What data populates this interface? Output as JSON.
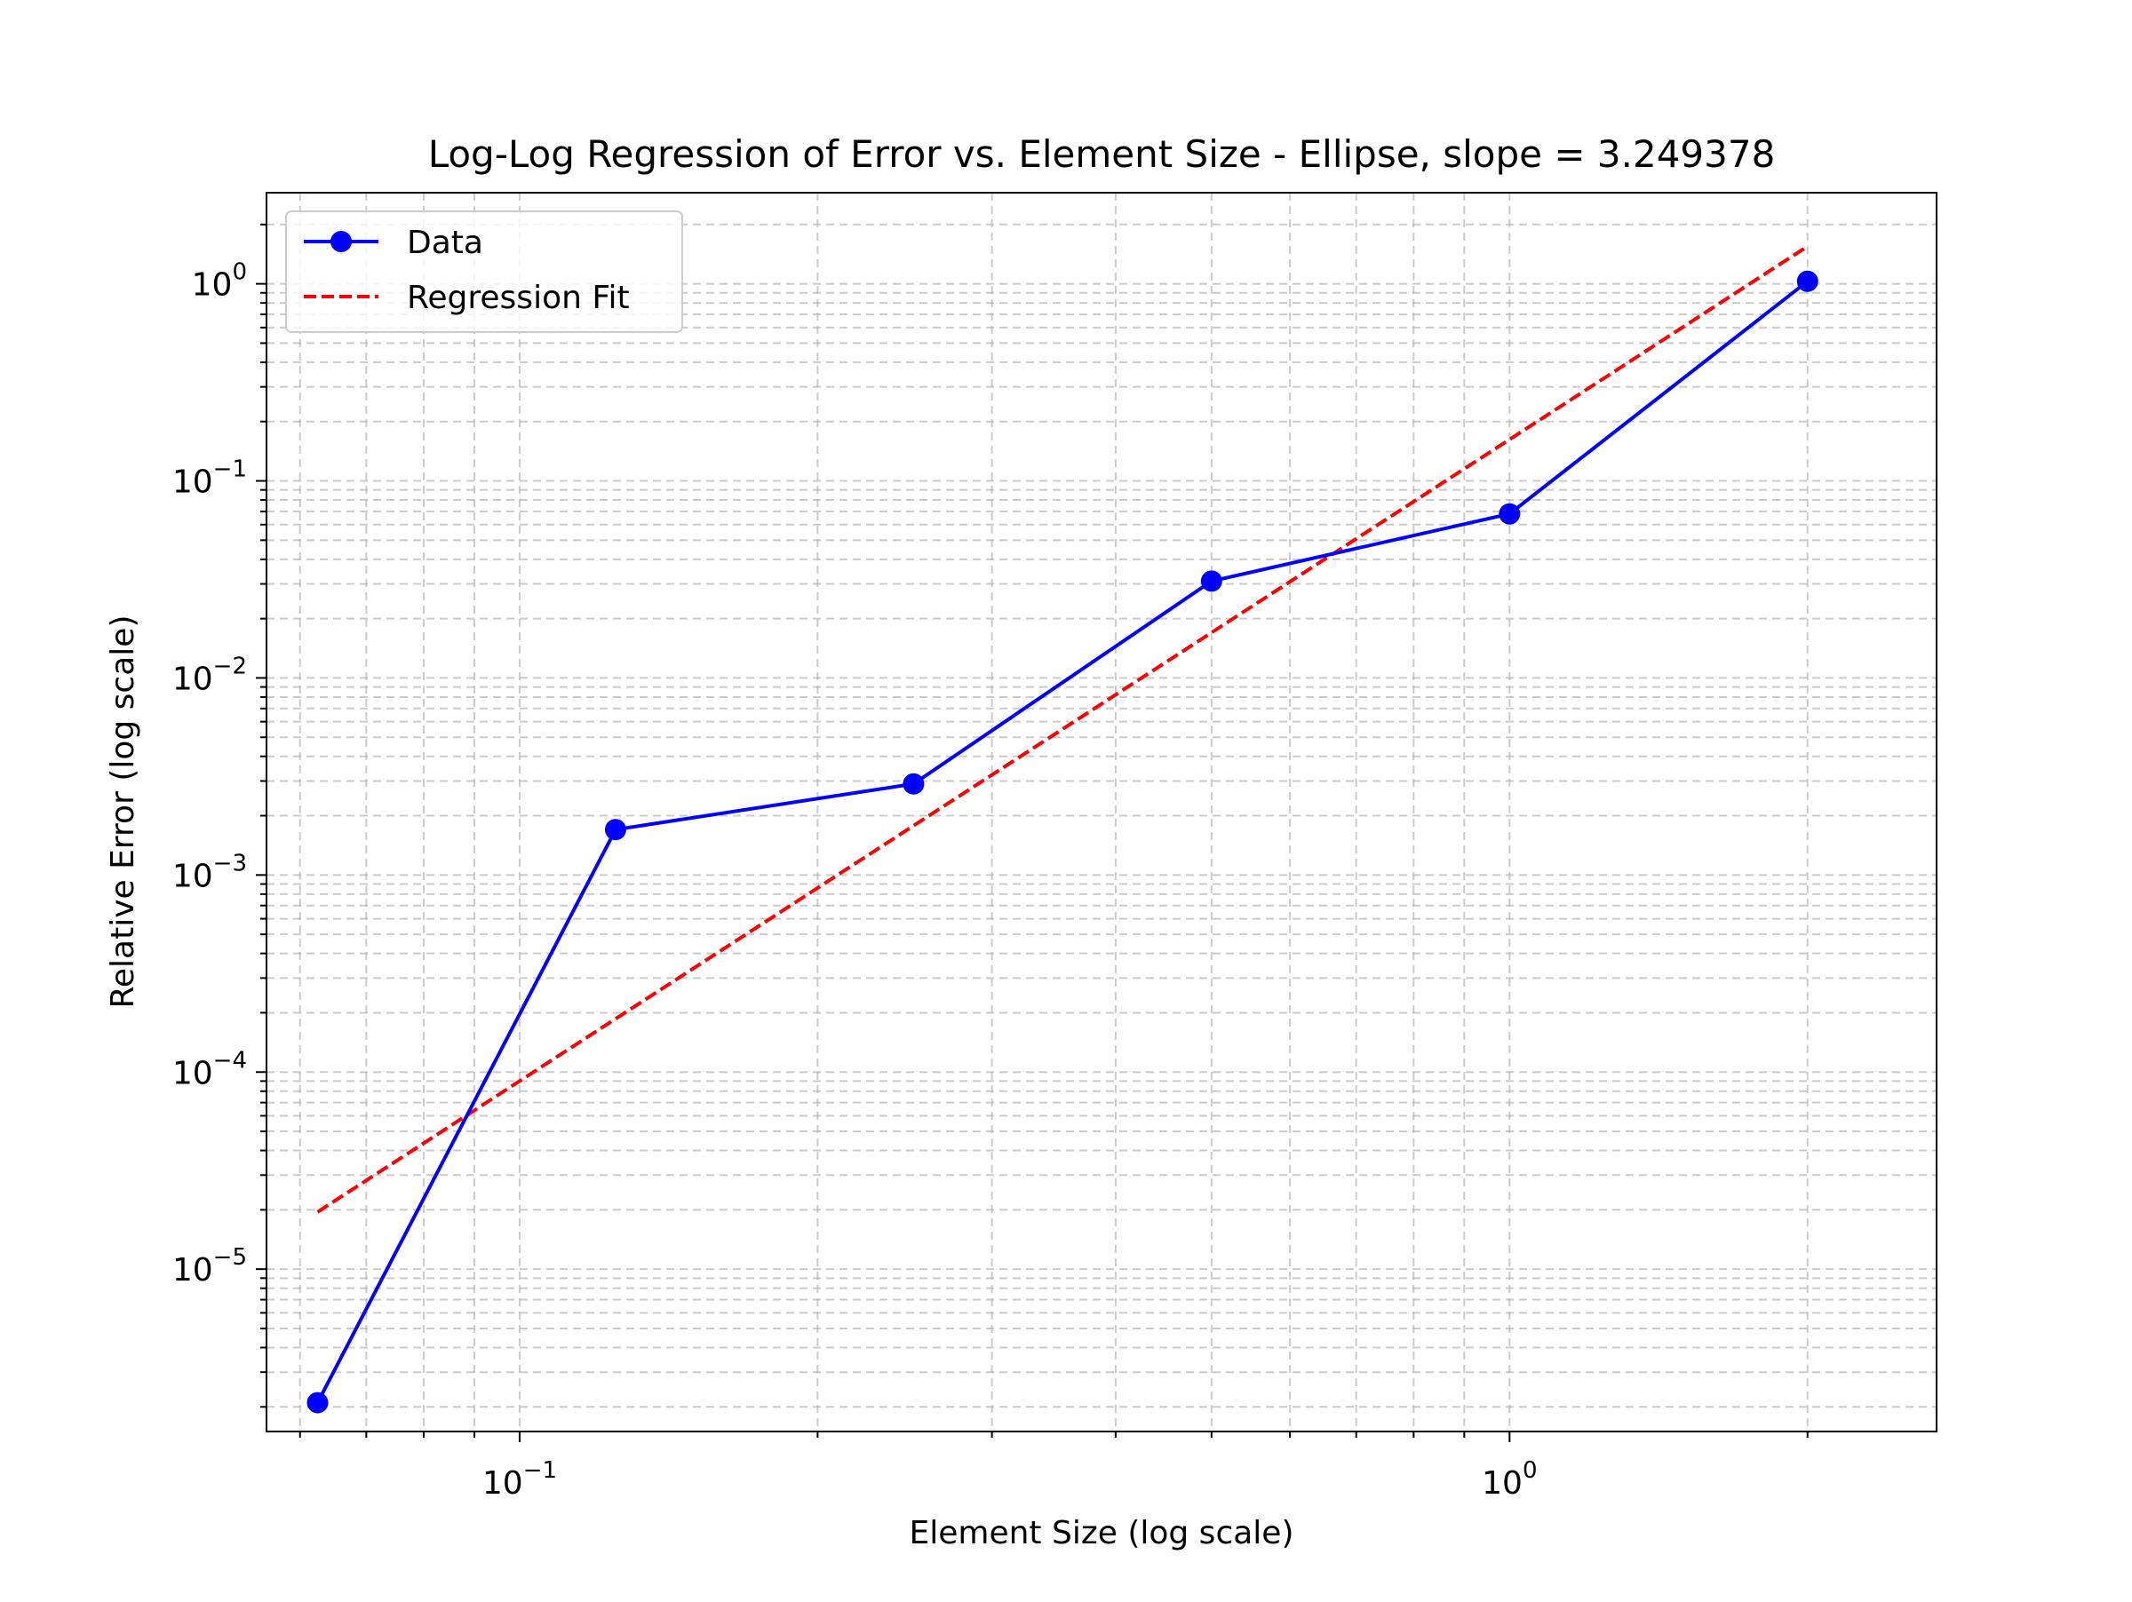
{
  "chart_data": {
    "type": "line",
    "title": "Log-Log Regression of Error vs. Element Size - Ellipse, slope = 3.249378",
    "xlabel": "Element Size (log scale)",
    "ylabel": "Relative Error (log scale)",
    "xscale": "log",
    "yscale": "log",
    "xlim": [
      0.0555,
      2.7
    ],
    "ylim": [
      1.5e-06,
      2.9
    ],
    "grid": true,
    "grid_which": "both",
    "legend_placement": "top-left",
    "x_ticks": [
      {
        "value": 0.1,
        "base": "10",
        "exp": "−1"
      },
      {
        "value": 1,
        "base": "10",
        "exp": "0"
      }
    ],
    "y_ticks": [
      {
        "value": 1e-05,
        "base": "10",
        "exp": "−5"
      },
      {
        "value": 0.0001,
        "base": "10",
        "exp": "−4"
      },
      {
        "value": 0.001,
        "base": "10",
        "exp": "−3"
      },
      {
        "value": 0.01,
        "base": "10",
        "exp": "−2"
      },
      {
        "value": 0.1,
        "base": "10",
        "exp": "−1"
      },
      {
        "value": 1,
        "base": "10",
        "exp": "0"
      }
    ],
    "series": [
      {
        "name": "Data",
        "style": "solid-with-markers",
        "color": "#0000ff",
        "x": [
          0.0625,
          0.125,
          0.25,
          0.5,
          1.0,
          2.0
        ],
        "y": [
          2.1e-06,
          0.0017,
          0.0029,
          0.031,
          0.068,
          1.03
        ]
      },
      {
        "name": "Regression Fit",
        "style": "dashed",
        "color": "#ff0000",
        "x": [
          0.0625,
          2.0
        ],
        "y": [
          1.95e-05,
          1.55
        ]
      }
    ]
  }
}
